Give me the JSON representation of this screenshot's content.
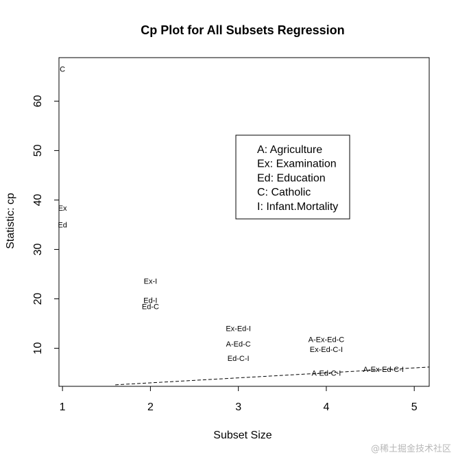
{
  "chart_data": {
    "type": "scatter",
    "title": "Cp Plot for All Subsets Regression",
    "xlabel": "Subset Size",
    "ylabel": "Statistic: cp",
    "xlim": [
      0.96,
      5.17
    ],
    "ylim": [
      2.3,
      68.8
    ],
    "xticks": [
      "1",
      "2",
      "3",
      "4",
      "5"
    ],
    "yticks": [
      "10",
      "20",
      "30",
      "40",
      "50",
      "60"
    ],
    "grid": false,
    "points": [
      {
        "label": "C",
        "x": 1,
        "y": 66.5
      },
      {
        "label": "Ex",
        "x": 1,
        "y": 38.4
      },
      {
        "label": "Ed",
        "x": 1,
        "y": 35.0
      },
      {
        "label": "Ex-I",
        "x": 2,
        "y": 23.6
      },
      {
        "label": "Ed-I",
        "x": 2,
        "y": 19.7
      },
      {
        "label": "Ed-C",
        "x": 2,
        "y": 18.5
      },
      {
        "label": "Ex-Ed-I",
        "x": 3,
        "y": 14.0
      },
      {
        "label": "A-Ed-C",
        "x": 3,
        "y": 10.9
      },
      {
        "label": "Ed-C-I",
        "x": 3,
        "y": 8.0
      },
      {
        "label": "A-Ex-Ed-C",
        "x": 4,
        "y": 11.8
      },
      {
        "label": "Ex-Ed-C-I",
        "x": 4,
        "y": 9.8
      },
      {
        "label": "A-Ed-C-I",
        "x": 4,
        "y": 5.0
      },
      {
        "label": "A-Ex-Ed-C-I",
        "x": 4.65,
        "y": 5.8
      }
    ],
    "reference_line": {
      "x": [
        1.6,
        5.17
      ],
      "y": [
        2.6,
        6.2
      ],
      "style": "dashed"
    },
    "legend": {
      "position": "upper-right-center",
      "entries": [
        "A: Agriculture",
        "Ex: Examination",
        "Ed: Education",
        "C: Catholic",
        "I: Infant.Mortality"
      ]
    }
  },
  "watermark": "@稀土掘金技术社区"
}
